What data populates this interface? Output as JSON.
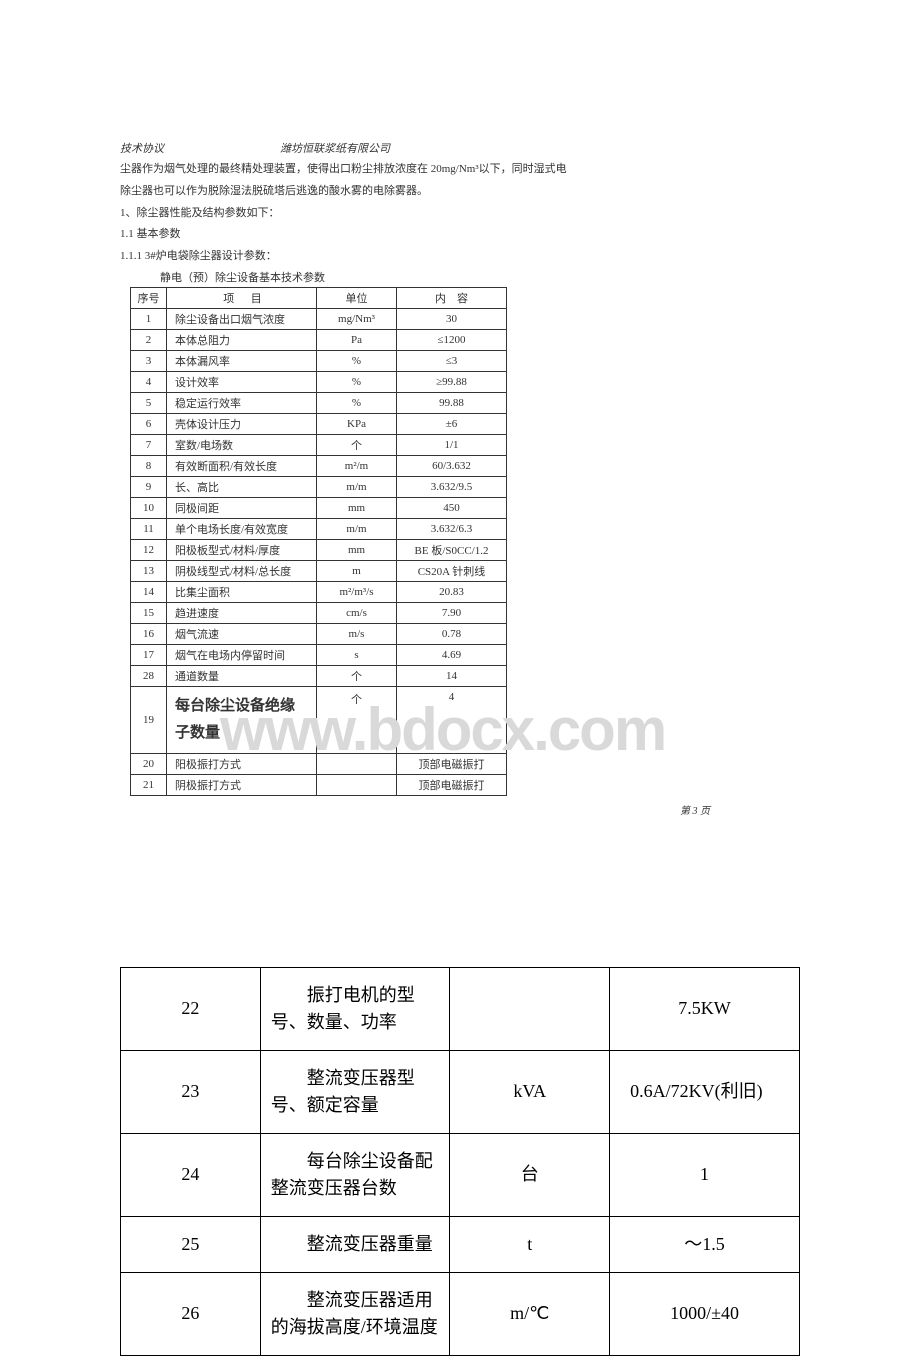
{
  "header": {
    "left": "技术协议",
    "right": "潍坊恒联浆纸有限公司"
  },
  "intro": {
    "line1": "尘器作为烟气处理的最终精处理装置，使得出口粉尘排放浓度在 20mg/Nm³以下，同时湿式电",
    "line2": "除尘器也可以作为脱除湿法脱硫塔后逃逸的酸水雾的电除雾器。"
  },
  "sections": {
    "s1": "1、除尘器性能及结构参数如下：",
    "s11": "1.1 基本参数",
    "s111": "1.1.1 3#炉电袋除尘器设计参数：",
    "caption": "静电（预）除尘设备基本技术参数"
  },
  "spec_table": {
    "headers": {
      "num": "序号",
      "item_left": "项",
      "item_right": "目",
      "unit": "单位",
      "content_left": "内",
      "content_right": "容"
    },
    "rows": [
      {
        "num": "1",
        "item": "除尘设备出口烟气浓度",
        "unit": "mg/Nm³",
        "content": "30"
      },
      {
        "num": "2",
        "item": "本体总阻力",
        "unit": "Pa",
        "content": "≤1200"
      },
      {
        "num": "3",
        "item": "本体漏风率",
        "unit": "%",
        "content": "≤3"
      },
      {
        "num": "4",
        "item": "设计效率",
        "unit": "%",
        "content": "≥99.88"
      },
      {
        "num": "5",
        "item": "稳定运行效率",
        "unit": "%",
        "content": "99.88"
      },
      {
        "num": "6",
        "item": "壳体设计压力",
        "unit": "KPa",
        "content": "±6"
      },
      {
        "num": "7",
        "item": "室数/电场数",
        "unit": "个",
        "content": "1/1"
      },
      {
        "num": "8",
        "item": "有效断面积/有效长度",
        "unit": "m²/m",
        "content": "60/3.632"
      },
      {
        "num": "9",
        "item": "长、高比",
        "unit": "m/m",
        "content": "3.632/9.5"
      },
      {
        "num": "10",
        "item": "同极间距",
        "unit": "mm",
        "content": "450"
      },
      {
        "num": "11",
        "item": "单个电场长度/有效宽度",
        "unit": "m/m",
        "content": "3.632/6.3"
      },
      {
        "num": "12",
        "item": "阳极板型式/材料/厚度",
        "unit": "mm",
        "content": "BE 板/S0CC/1.2"
      },
      {
        "num": "13",
        "item": "阴极线型式/材料/总长度",
        "unit": "m",
        "content": "CS20A 针刺线"
      },
      {
        "num": "14",
        "item": "比集尘面积",
        "unit": "m²/m³/s",
        "content": "20.83"
      },
      {
        "num": "15",
        "item": "趋进速度",
        "unit": "cm/s",
        "content": "7.90"
      },
      {
        "num": "16",
        "item": "烟气流速",
        "unit": "m/s",
        "content": "0.78"
      },
      {
        "num": "17",
        "item": "烟气在电场内停留时间",
        "unit": "s",
        "content": "4.69"
      },
      {
        "num": "28",
        "item": "通道数量",
        "unit": "个",
        "content": "14"
      },
      {
        "num": "19",
        "item": "每台除尘设备绝缘子数量",
        "unit": "个",
        "content": "4"
      },
      {
        "num": "20",
        "item": "阳极振打方式",
        "unit": "",
        "content": "顶部电磁振打"
      },
      {
        "num": "21",
        "item": "阴极振打方式",
        "unit": "",
        "content": "顶部电磁振打"
      }
    ]
  },
  "page_number": "第 3 页",
  "watermark": "www.bdocx.com",
  "big_table": {
    "rows": [
      {
        "num": "22",
        "item": "振打电机的型号、数量、功率",
        "unit": "",
        "content": "7.5KW"
      },
      {
        "num": "23",
        "item": "整流变压器型号、额定容量",
        "unit": "kVA",
        "content": "0.6A/72KV(利旧)",
        "content_align": "left"
      },
      {
        "num": "24",
        "item": "每台除尘设备配整流变压器台数",
        "unit": "台",
        "content": "1"
      },
      {
        "num": "25",
        "item": "整流变压器重量",
        "unit": "t",
        "content": "～1.5"
      },
      {
        "num": "26",
        "item": "整流变压器适用的海拔高度/环境温度",
        "unit": "m/℃",
        "content": "1000/±40"
      }
    ]
  }
}
